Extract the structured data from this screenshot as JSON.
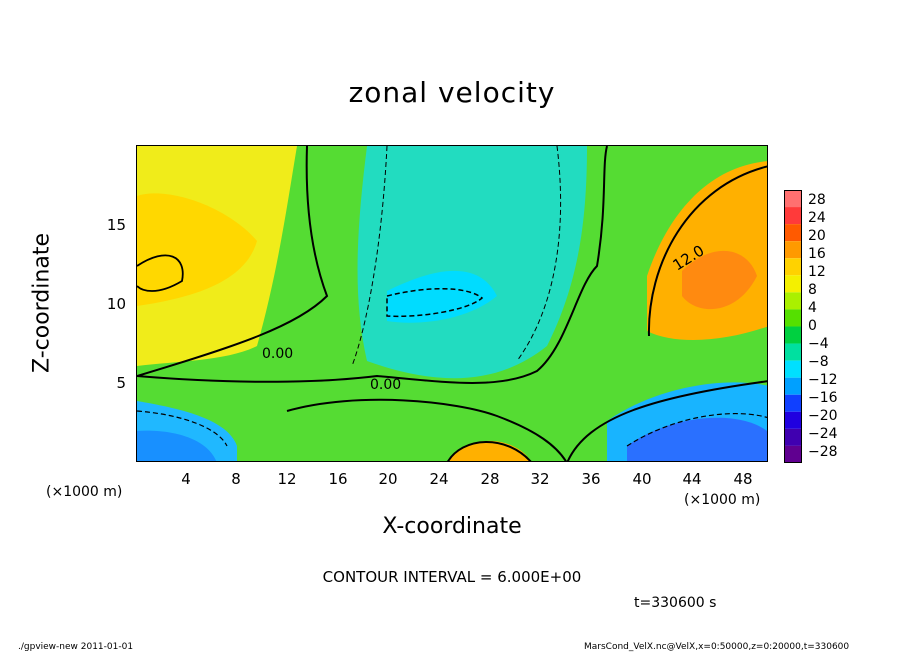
{
  "chart_data": {
    "type": "heatmap",
    "title": "zonal velocity",
    "xlabel": "X-coordinate",
    "ylabel": "Z-coordinate",
    "x_unit_label": "(×1000 m)",
    "y_unit_label": "(×1000 m)",
    "x_ticks": [
      4,
      8,
      12,
      16,
      20,
      24,
      28,
      32,
      36,
      40,
      44,
      48
    ],
    "y_ticks": [
      5,
      10,
      15
    ],
    "xlim": [
      0,
      50
    ],
    "ylim": [
      0,
      20
    ],
    "contour_labels": [
      "0.00",
      "0.00",
      "12.0"
    ],
    "contour_interval_text": "CONTOUR INTERVAL = 6.000E+00",
    "time_text": "t=330600 s",
    "colorbar": {
      "labels": [
        "28",
        "24",
        "20",
        "16",
        "12",
        "8",
        "4",
        "0",
        "−4",
        "−8",
        "−12",
        "−16",
        "−20",
        "−24",
        "−28"
      ],
      "colors": [
        "#ff7070",
        "#ff3a3a",
        "#ff5a00",
        "#ff9a00",
        "#ffd200",
        "#f4f000",
        "#aaf000",
        "#55e000",
        "#00d040",
        "#00e0a0",
        "#00e0ff",
        "#00a0ff",
        "#1040ff",
        "#2000e0",
        "#4000b0",
        "#600090"
      ]
    },
    "regions": [
      {
        "name": "background",
        "value": 4
      },
      {
        "name": "upper-left",
        "value": 10
      },
      {
        "name": "center-jet",
        "value": -8
      },
      {
        "name": "center-core",
        "value": -11
      },
      {
        "name": "right-max",
        "value": 14
      },
      {
        "name": "bottom-left",
        "value": -13
      },
      {
        "name": "bottom-right",
        "value": -16
      },
      {
        "name": "bottom-center",
        "value": 14
      }
    ]
  },
  "footer": {
    "left": "./gpview-new   2011-01-01",
    "right": "MarsCond_VelX.nc@VelX,x=0:50000,z=0:20000,t=330600"
  }
}
